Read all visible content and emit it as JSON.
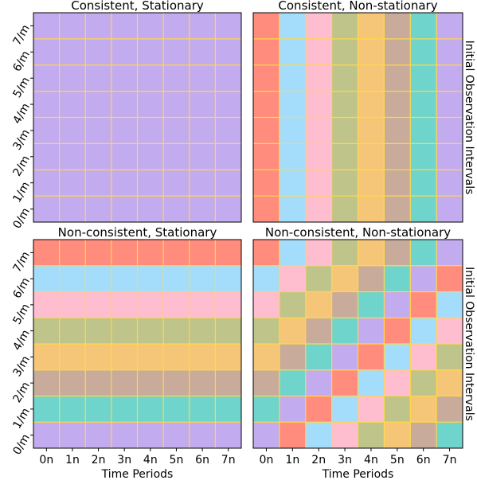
{
  "chart_data": [
    {
      "type": "heatmap",
      "title": "Consistent, Stationary",
      "pattern": "uniform",
      "x_ticks": [],
      "y_ticks": [
        "7/m",
        "6/m",
        "5/m",
        "4/m",
        "3/m",
        "2/m",
        "1/m",
        "0/m"
      ],
      "xlabel": "",
      "ylabel": "",
      "grid": "gold lines between cells"
    },
    {
      "type": "heatmap",
      "title": "Consistent, Non-stationary",
      "pattern": "by-column",
      "x_ticks": [],
      "y_ticks": [],
      "xlabel": "",
      "ylabel": "Initial Observation Intervals",
      "grid": "gold lines between cells"
    },
    {
      "type": "heatmap",
      "title": "Non-consistent, Stationary",
      "pattern": "by-row",
      "x_ticks": [
        "0n",
        "1n",
        "2n",
        "3n",
        "4n",
        "5n",
        "6n",
        "7n"
      ],
      "y_ticks": [
        "7/m",
        "6/m",
        "5/m",
        "4/m",
        "3/m",
        "2/m",
        "1/m",
        "0/m"
      ],
      "xlabel": "Time Periods",
      "ylabel": "",
      "grid": "gold lines between cells"
    },
    {
      "type": "heatmap",
      "title": "Non-consistent, Non-stationary",
      "pattern": "diagonal",
      "x_ticks": [
        "0n",
        "1n",
        "2n",
        "3n",
        "4n",
        "5n",
        "6n",
        "7n"
      ],
      "y_ticks": [],
      "xlabel": "Time Periods",
      "ylabel": "Initial Observation Intervals",
      "grid": "gold lines between cells"
    }
  ],
  "palette": [
    "#ff8c7c",
    "#a4dcfb",
    "#ffbdd0",
    "#bfc48a",
    "#f6c678",
    "#c8ab9b",
    "#6fd4cb",
    "#c2abef"
  ],
  "grid_color": "#ffd84a"
}
